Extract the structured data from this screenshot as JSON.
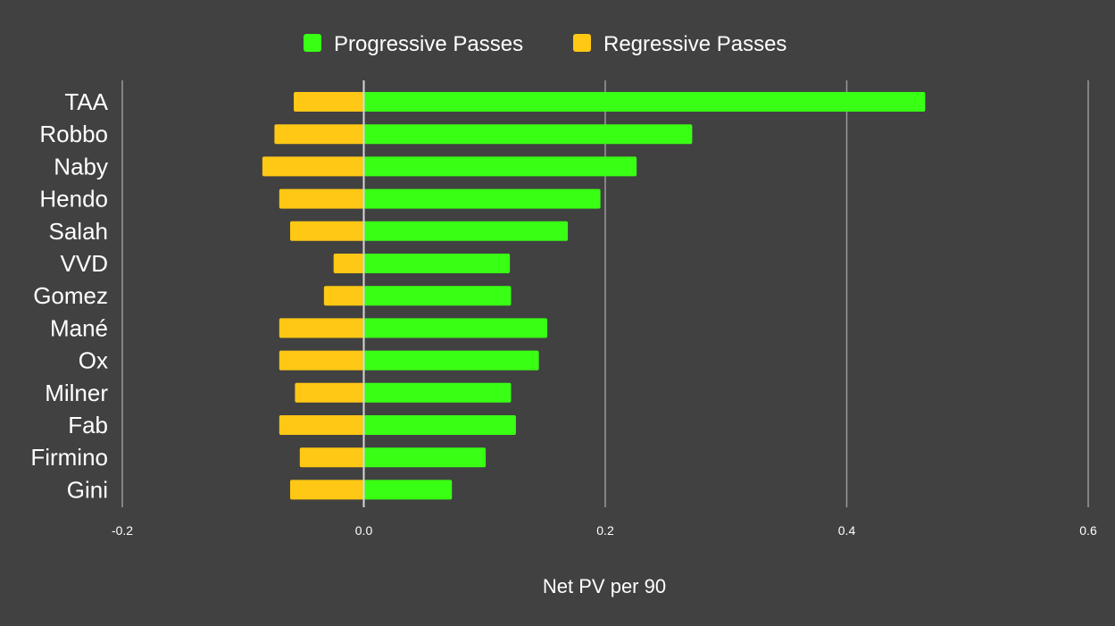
{
  "chart_data": {
    "type": "bar",
    "orientation": "horizontal",
    "stacked": true,
    "categories": [
      "TAA",
      "Robbo",
      "Naby",
      "Hendo",
      "Salah",
      "VVD",
      "Gomez",
      "Mané",
      "Ox",
      "Milner",
      "Fab",
      "Firmino",
      "Gini"
    ],
    "series": [
      {
        "name": "Progressive Passes",
        "color": "#39ff14",
        "values": [
          0.465,
          0.272,
          0.226,
          0.196,
          0.169,
          0.121,
          0.122,
          0.152,
          0.145,
          0.122,
          0.126,
          0.101,
          0.073
        ]
      },
      {
        "name": "Regressive Passes",
        "color": "#ffc814",
        "values": [
          -0.058,
          -0.074,
          -0.084,
          -0.07,
          -0.061,
          -0.025,
          -0.033,
          -0.07,
          -0.07,
          -0.057,
          -0.07,
          -0.053,
          -0.061
        ]
      }
    ],
    "xlabel": "Net PV per 90",
    "ylabel": "",
    "xlim": [
      -0.2,
      0.6
    ],
    "xticks": [
      -0.2,
      0.0,
      0.2,
      0.4,
      0.6
    ],
    "xtick_labels": [
      "-0.2",
      "0.0",
      "0.2",
      "0.4",
      "0.6"
    ],
    "grid": true,
    "legend_position": "top-center",
    "background": "#414141"
  }
}
